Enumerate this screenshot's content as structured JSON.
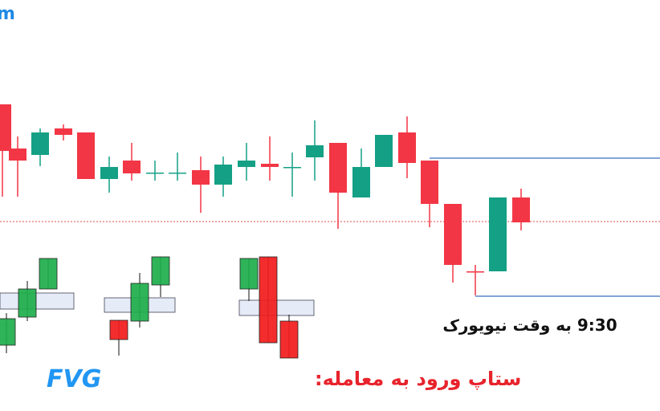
{
  "corner_mark": "m",
  "time_note": "9:30 به وقت نیویورک",
  "setup_title": {
    "label": "ستاپ ورود به معامله:",
    "highlight": "FVG"
  }
}
